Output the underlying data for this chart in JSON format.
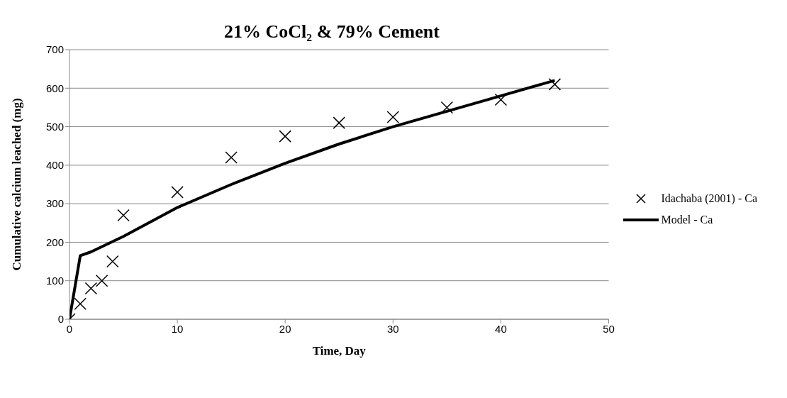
{
  "chart_data": {
    "type": "scatter",
    "title": "21% CoCl₂ & 79% Cement",
    "xlabel": "Time, Day",
    "ylabel": "Cumulative calcium leached (mg)",
    "series": [
      {
        "name": "Idachaba (2001) - Ca",
        "color": "#000000",
        "marker": "cross",
        "x": [
          0,
          1,
          2,
          3,
          4,
          5,
          10,
          15,
          20,
          25,
          30,
          35,
          40,
          45
        ],
        "values": [
          0,
          40,
          80,
          100,
          150,
          270,
          330,
          420,
          475,
          510,
          525,
          550,
          570,
          610
        ]
      },
      {
        "name": "Model - Ca",
        "type": "line",
        "color": "#000000",
        "marker": "none",
        "line_style": "solid",
        "x": [
          0,
          1,
          2,
          5,
          10,
          15,
          20,
          25,
          30,
          35,
          40,
          45
        ],
        "values": [
          0,
          165,
          175,
          215,
          290,
          350,
          405,
          455,
          500,
          540,
          580,
          620
        ]
      }
    ],
    "xlim": [
      0,
      50
    ],
    "xticks": [
      0,
      10,
      20,
      30,
      40,
      50
    ],
    "ylim": [
      0,
      700
    ],
    "yticks": [
      0,
      100,
      200,
      300,
      400,
      500,
      600,
      700
    ],
    "grid": "y",
    "legend": "right"
  }
}
